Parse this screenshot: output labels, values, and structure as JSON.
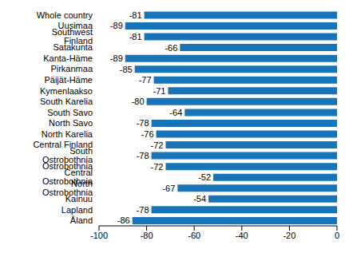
{
  "chart_data": {
    "type": "bar",
    "orientation": "horizontal",
    "categories": [
      "Whole country",
      "Uusimaa",
      "Southwest Finland",
      "Satakunta",
      "Kanta-Häme",
      "Pirkanmaa",
      "Päijät-Häme",
      "Kymenlaakso",
      "South Karelia",
      "South Savo",
      "North Savo",
      "North Karelia",
      "Central Finland",
      "South Ostrobothnia",
      "Ostrobothnia",
      "Central Ostrobothnia",
      "North Ostrobothnia",
      "Kainuu",
      "Lapland",
      "Åland"
    ],
    "values": [
      -81,
      -89,
      -81,
      -66,
      -89,
      -85,
      -77,
      -71,
      -80,
      -64,
      -78,
      -76,
      -72,
      -78,
      -72,
      -52,
      -67,
      -54,
      -78,
      -86
    ],
    "color": "#1874b8",
    "xlim": [
      -100,
      0
    ],
    "xticks": [
      -100,
      -80,
      -60,
      -40,
      -20,
      0
    ],
    "grid": false,
    "data_labels": true
  }
}
